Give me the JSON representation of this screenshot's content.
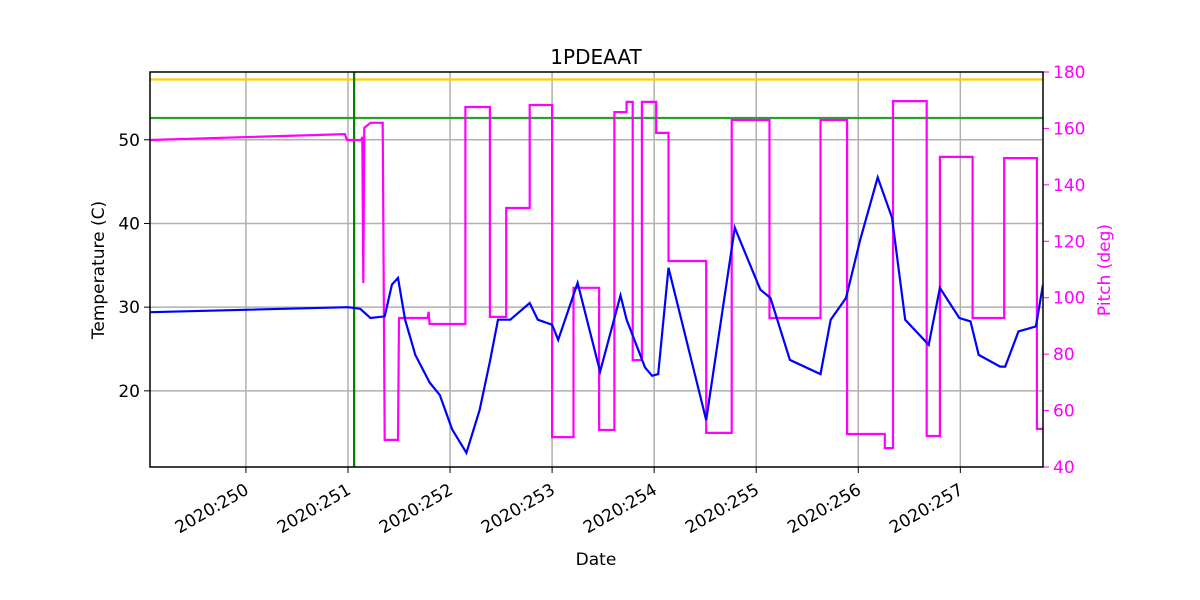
{
  "chart_data": {
    "type": "line",
    "title": "1PDEAAT",
    "xlabel": "Date",
    "ylabel": "Temperature (C)",
    "y2label": "Pitch (deg)",
    "xlim": [
      249.06,
      257.81
    ],
    "xticks": [
      {
        "value": 250,
        "label": "2020:250"
      },
      {
        "value": 251,
        "label": "2020:251"
      },
      {
        "value": 252,
        "label": "2020:252"
      },
      {
        "value": 253,
        "label": "2020:253"
      },
      {
        "value": 254,
        "label": "2020:254"
      },
      {
        "value": 255,
        "label": "2020:255"
      },
      {
        "value": 256,
        "label": "2020:256"
      },
      {
        "value": 257,
        "label": "2020:257"
      }
    ],
    "ylim": [
      10.9,
      58.1
    ],
    "yticks": [
      20,
      30,
      40,
      50
    ],
    "y2lim": [
      40,
      180
    ],
    "y2ticks": [
      40,
      60,
      80,
      100,
      120,
      140,
      160,
      180
    ],
    "grid": true,
    "hlines": [
      {
        "value": 57.2,
        "color": "#ffcc00"
      },
      {
        "value": 52.6,
        "color": "#2ca02c"
      }
    ],
    "vlines": [
      {
        "value": 251.06,
        "color": "#008000"
      }
    ],
    "series": [
      {
        "name": "Temperature",
        "color": "#0000ff",
        "x": [
          249.06,
          251.0,
          251.12,
          251.22,
          251.36,
          251.43,
          251.49,
          251.56,
          251.66,
          251.8,
          251.9,
          252.02,
          252.16,
          252.29,
          252.39,
          252.47,
          252.59,
          252.78,
          252.86,
          253.0,
          253.06,
          253.25,
          253.47,
          253.67,
          253.73,
          253.91,
          253.98,
          254.04,
          254.14,
          254.51,
          254.79,
          255.04,
          255.14,
          255.33,
          255.63,
          255.73,
          255.88,
          256.02,
          256.19,
          256.33,
          256.46,
          256.69,
          256.8,
          256.99,
          257.1,
          257.18,
          257.39,
          257.44,
          257.57,
          257.74,
          257.81
        ],
        "values": [
          29.4,
          30.0,
          29.8,
          28.7,
          28.9,
          32.7,
          33.5,
          28.5,
          24.3,
          21.0,
          19.5,
          15.4,
          12.6,
          17.7,
          23.5,
          28.5,
          28.5,
          30.5,
          28.5,
          27.9,
          26.1,
          32.9,
          22.3,
          31.4,
          28.5,
          22.8,
          21.8,
          22.0,
          34.7,
          16.5,
          39.5,
          32.1,
          31.1,
          23.7,
          22.0,
          28.5,
          31.1,
          38.1,
          45.5,
          40.7,
          28.5,
          25.5,
          32.3,
          28.7,
          28.3,
          24.3,
          22.9,
          22.9,
          27.1,
          27.7,
          32.7
        ]
      },
      {
        "name": "Pitch",
        "color": "#ff00ff",
        "axis": "y2",
        "x": [
          249.06,
          250.97,
          250.99,
          251.13,
          251.14,
          251.15,
          251.16,
          251.22,
          251.34,
          251.36,
          251.49,
          251.5,
          251.78,
          251.79,
          251.8,
          252.15,
          252.15,
          252.39,
          252.39,
          252.55,
          252.55,
          252.78,
          252.78,
          253.0,
          253.0,
          253.21,
          253.21,
          253.46,
          253.46,
          253.61,
          253.61,
          253.73,
          253.73,
          253.79,
          253.79,
          253.88,
          253.88,
          254.02,
          254.02,
          254.14,
          254.14,
          254.51,
          254.51,
          254.76,
          254.76,
          255.13,
          255.13,
          255.63,
          255.63,
          255.89,
          255.89,
          256.26,
          256.26,
          256.34,
          256.34,
          256.67,
          256.67,
          256.8,
          256.8,
          257.12,
          257.12,
          257.43,
          257.43,
          257.75,
          257.75,
          257.81
        ],
        "values": [
          155.9,
          158,
          155.9,
          155.9,
          157,
          105.2,
          160.2,
          162,
          162,
          49.6,
          49.6,
          92.8,
          92.8,
          95,
          90.7,
          90.7,
          167.6,
          167.6,
          93.2,
          93.2,
          131.8,
          131.8,
          168.3,
          168.3,
          50.6,
          50.6,
          103.5,
          103.5,
          53.1,
          53.1,
          165.8,
          165.8,
          169.4,
          169.4,
          77.9,
          77.9,
          169.4,
          169.4,
          158.4,
          158.4,
          113,
          113,
          52.1,
          52.1,
          163,
          163,
          92.8,
          92.8,
          163,
          163,
          51.7,
          51.7,
          46.7,
          46.7,
          169.7,
          169.7,
          51,
          51,
          149.9,
          149.9,
          92.8,
          92.8,
          149.5,
          149.5,
          53.5,
          53.5
        ]
      }
    ]
  }
}
